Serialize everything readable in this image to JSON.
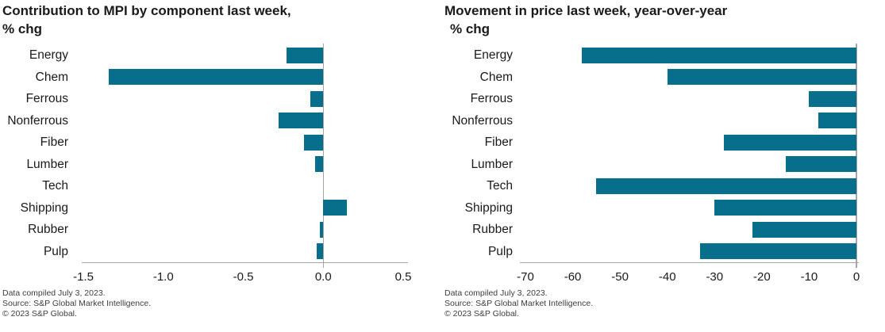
{
  "colors": {
    "bar": "#076e8c",
    "axis_line": "#a6a6a6",
    "zero_line": "#a6a6a6",
    "title_text": "#1a1a1a",
    "label_text": "#1a1a1a",
    "footer_text": "#3d3d3d",
    "background": "#ffffff"
  },
  "chart_data": [
    {
      "type": "bar",
      "orientation": "horizontal",
      "title": "Contribution to MPI by component last week, % chg",
      "title_lines": [
        "Contribution to MPI by component last week,",
        "% chg"
      ],
      "categories": [
        "Energy",
        "Chem",
        "Ferrous",
        "Nonferrous",
        "Fiber",
        "Lumber",
        "Tech",
        "Shipping",
        "Rubber",
        "Pulp"
      ],
      "values": [
        -0.23,
        -1.34,
        -0.08,
        -0.28,
        -0.12,
        -0.05,
        0,
        0.15,
        -0.02,
        -0.04
      ],
      "xlim": [
        -1.5,
        0.5
      ],
      "xticks": [
        -1.5,
        -1.0,
        -0.5,
        0.0,
        0.5
      ],
      "xtick_labels": [
        "-1.5",
        "-1.0",
        "-0.5",
        "0.0",
        "0.5"
      ],
      "xlabel": "",
      "ylabel": "",
      "grid": false,
      "legend": "none",
      "footer_lines": [
        "Data compiled July 3, 2023.",
        "Source: S&P Global Market Intelligence.",
        "© 2023 S&P Global."
      ]
    },
    {
      "type": "bar",
      "orientation": "horizontal",
      "title": "Movement in price last week, year-over-year % chg",
      "title_lines": [
        "Movement in price last week, year-over-year",
        "% chg"
      ],
      "categories": [
        "Energy",
        "Chem",
        "Ferrous",
        "Nonferrous",
        "Fiber",
        "Lumber",
        "Tech",
        "Shipping",
        "Rubber",
        "Pulp"
      ],
      "values": [
        -58,
        -40,
        -10,
        -8,
        -28,
        -15,
        -55,
        -30,
        -22,
        -33
      ],
      "xlim": [
        -70,
        0
      ],
      "xticks": [
        -70,
        -60,
        -50,
        -40,
        -30,
        -20,
        -10,
        0
      ],
      "xtick_labels": [
        "-70",
        "-60",
        "-50",
        "-40",
        "-30",
        "-20",
        "-10",
        "0"
      ],
      "xlabel": "",
      "ylabel": "",
      "grid": false,
      "legend": "none",
      "footer_lines": [
        "Data compiled July 3, 2023.",
        "Source: S&P Global Market Intelligence.",
        "© 2023 S&P Global."
      ]
    }
  ]
}
